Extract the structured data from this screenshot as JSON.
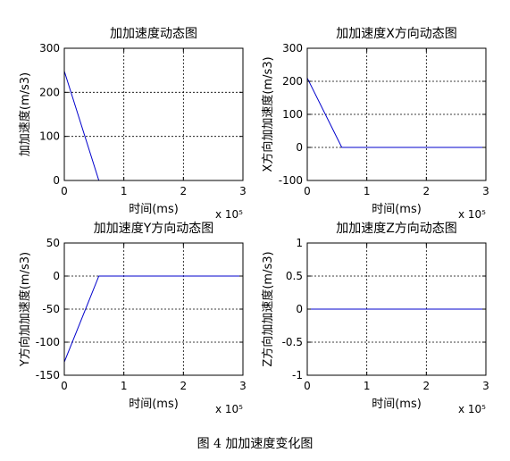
{
  "caption": "图 4  加加速度变化图",
  "chart_data": [
    {
      "type": "line",
      "title": "加加速度动态图",
      "xlabel": "时间(ms)",
      "ylabel": "加加速度(m/s3)",
      "x_multiplier": "x 10⁵",
      "xlim": [
        0,
        3
      ],
      "ylim": [
        0,
        300
      ],
      "xticks": [
        0,
        1,
        2,
        3
      ],
      "yticks": [
        0,
        100,
        200,
        300
      ],
      "grid": true,
      "series": [
        {
          "color": "#0000cc",
          "x": [
            0,
            0.58,
            3
          ],
          "y": [
            248,
            0,
            0
          ]
        }
      ]
    },
    {
      "type": "line",
      "title": "加加速度X方向动态图",
      "xlabel": "时间(ms)",
      "ylabel": "X方向加加速度(m/s3)",
      "x_multiplier": "x 10⁵",
      "xlim": [
        0,
        3
      ],
      "ylim": [
        -100,
        300
      ],
      "xticks": [
        0,
        1,
        2,
        3
      ],
      "yticks": [
        -100,
        0,
        100,
        200,
        300
      ],
      "grid": true,
      "series": [
        {
          "color": "#0000cc",
          "x": [
            0,
            0.58,
            3
          ],
          "y": [
            210,
            0,
            0
          ]
        }
      ]
    },
    {
      "type": "line",
      "title": "加加速度Y方向动态图",
      "xlabel": "时间(ms)",
      "ylabel": "Y方向加加速度(m/s3)",
      "x_multiplier": "x 10⁵",
      "xlim": [
        0,
        3
      ],
      "ylim": [
        -150,
        50
      ],
      "xticks": [
        0,
        1,
        2,
        3
      ],
      "yticks": [
        -150,
        -100,
        -50,
        0,
        50
      ],
      "grid": true,
      "series": [
        {
          "color": "#0000cc",
          "x": [
            0,
            0.58,
            3
          ],
          "y": [
            -130,
            0,
            0
          ]
        }
      ]
    },
    {
      "type": "line",
      "title": "加加速度Z方向动态图",
      "xlabel": "时间(ms)",
      "ylabel": "Z方向加加速度(m/s3)",
      "x_multiplier": "x 10⁵",
      "xlim": [
        0,
        3
      ],
      "ylim": [
        -1,
        1
      ],
      "xticks": [
        0,
        1,
        2,
        3
      ],
      "yticks": [
        -1,
        -0.5,
        0,
        0.5,
        1
      ],
      "grid": true,
      "series": [
        {
          "color": "#0000cc",
          "x": [
            0,
            3
          ],
          "y": [
            0,
            0
          ]
        }
      ]
    }
  ]
}
